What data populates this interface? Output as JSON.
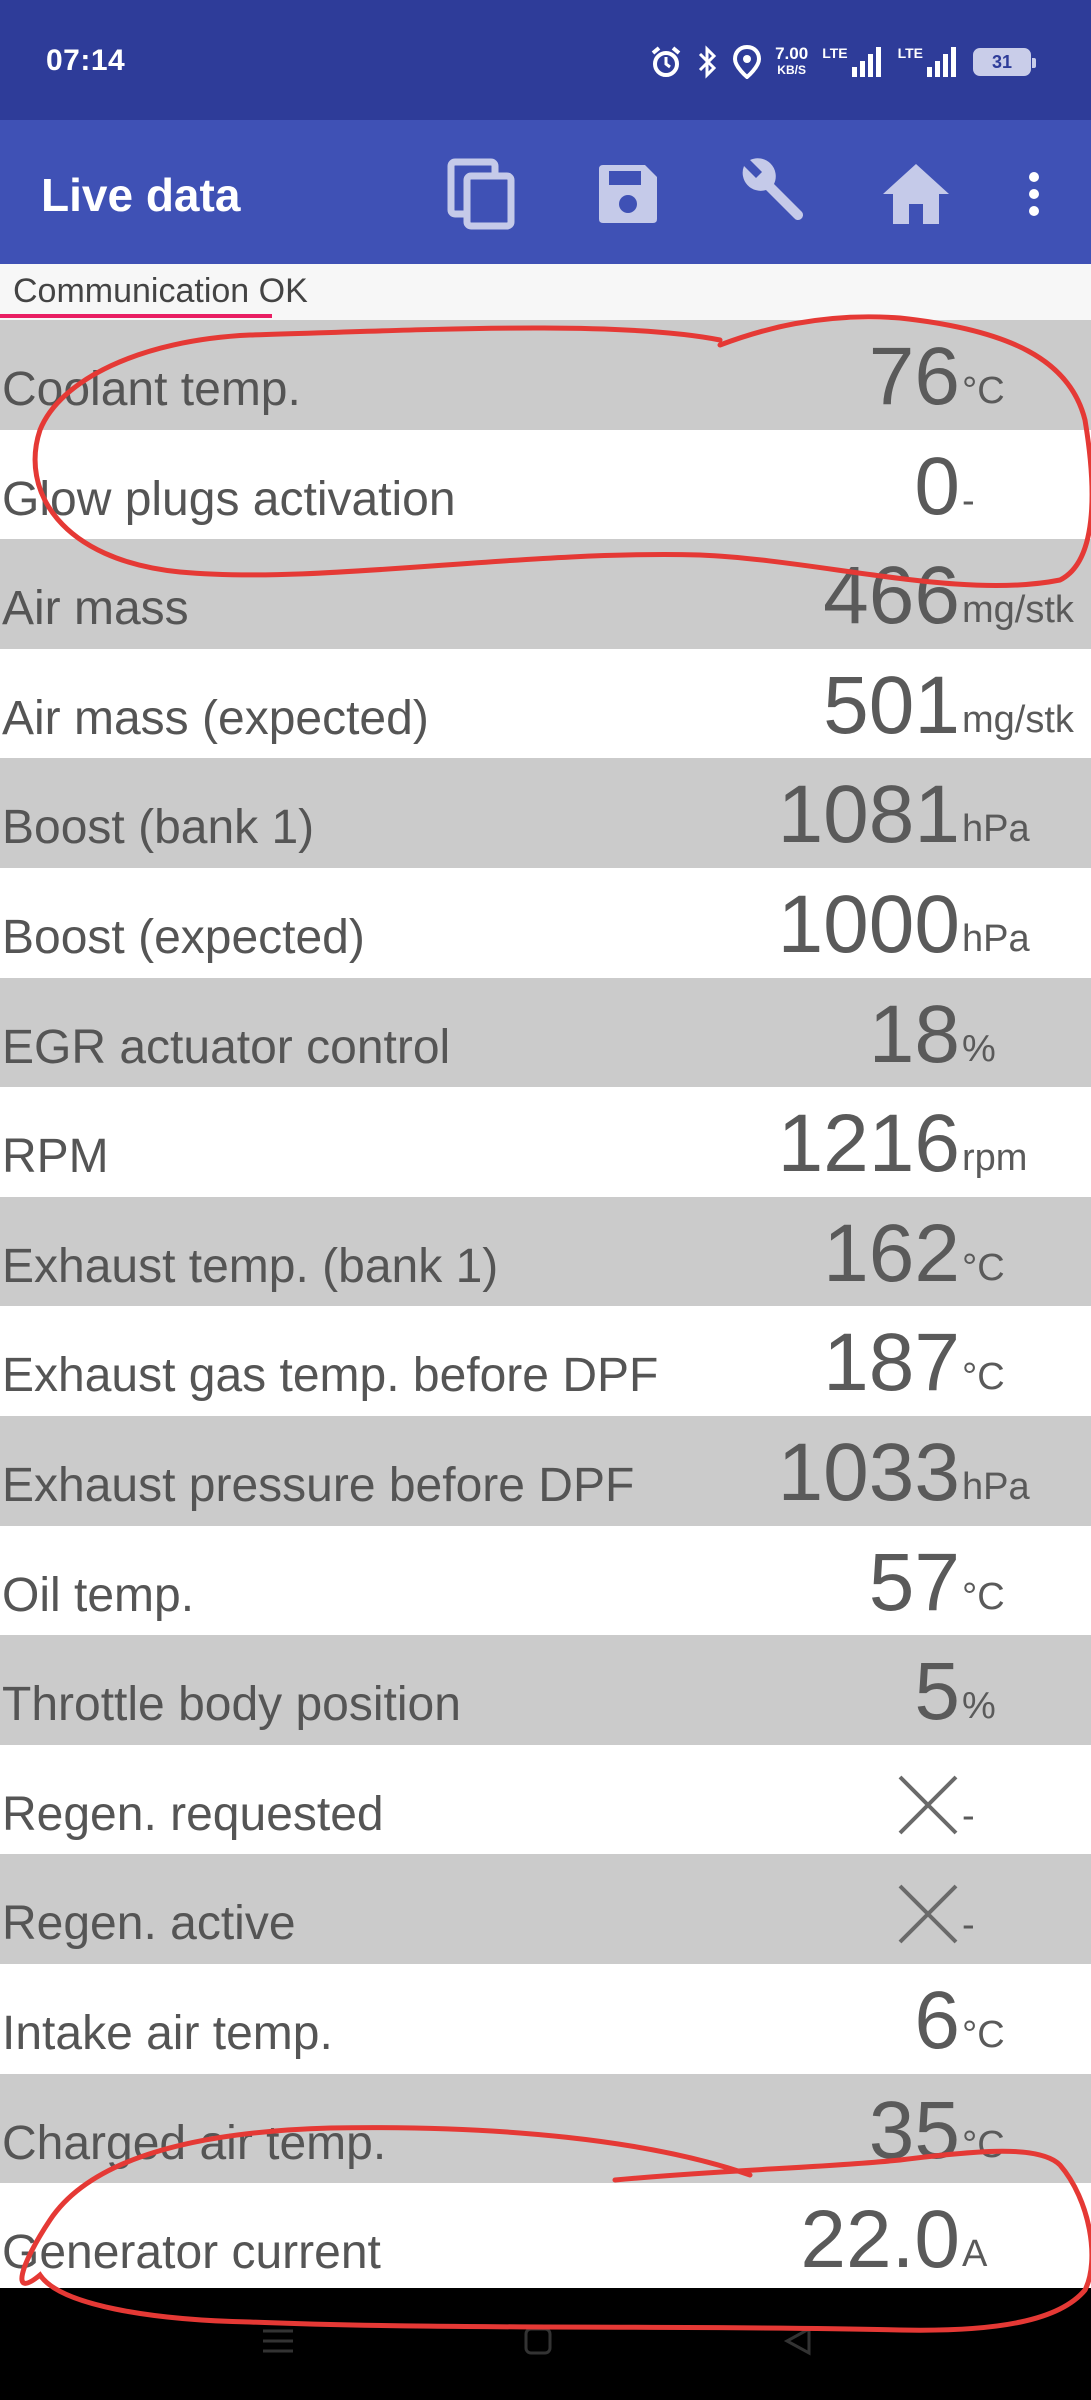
{
  "status_bar": {
    "time": "07:14",
    "net_speed": "7.00",
    "net_speed_unit": "KB/S",
    "network_1": "LTE",
    "network_2": "LTE",
    "battery": "31"
  },
  "app_bar": {
    "title": "Live data",
    "actions": [
      "copy-icon",
      "save-icon",
      "wrench-icon",
      "home-icon",
      "more-vert-icon"
    ]
  },
  "status": {
    "text": "Communication OK",
    "accent": "#e91e63"
  },
  "colors": {
    "status_bar": "#2e3c99",
    "app_bar": "#3f51b5",
    "row_shade": "#cbcbcb",
    "annotation": "#e53935"
  },
  "rows": [
    {
      "label": "Coolant temp.",
      "value": "76",
      "unit": "°C"
    },
    {
      "label": "Glow plugs activation",
      "value": "0",
      "unit": "-"
    },
    {
      "label": "Air mass",
      "value": "466",
      "unit": "mg/stk"
    },
    {
      "label": "Air mass (expected)",
      "value": "501",
      "unit": "mg/stk"
    },
    {
      "label": "Boost (bank 1)",
      "value": "1081",
      "unit": "hPa"
    },
    {
      "label": "Boost (expected)",
      "value": "1000",
      "unit": "hPa"
    },
    {
      "label": "EGR actuator control",
      "value": "18",
      "unit": "%"
    },
    {
      "label": "RPM",
      "value": "1216",
      "unit": "rpm"
    },
    {
      "label": "Exhaust temp. (bank 1)",
      "value": "162",
      "unit": "°C"
    },
    {
      "label": "Exhaust gas temp. before DPF",
      "value": "187",
      "unit": "°C"
    },
    {
      "label": "Exhaust pressure before DPF",
      "value": "1033",
      "unit": "hPa"
    },
    {
      "label": "Oil temp.",
      "value": "57",
      "unit": "°C"
    },
    {
      "label": "Throttle body position",
      "value": "5",
      "unit": "%"
    },
    {
      "label": "Regen. requested",
      "value": "",
      "unit": "-",
      "icon": "cross-icon"
    },
    {
      "label": "Regen. active",
      "value": "",
      "unit": "-",
      "icon": "cross-icon"
    },
    {
      "label": "Intake air temp.",
      "value": "6",
      "unit": "°C"
    },
    {
      "label": "Charged air temp.",
      "value": "35",
      "unit": "°C"
    },
    {
      "label": "Generator current",
      "value": "22.0",
      "unit": "A"
    }
  ],
  "nav_bar": [
    "menu-icon",
    "home-square-icon",
    "back-triangle-icon"
  ]
}
